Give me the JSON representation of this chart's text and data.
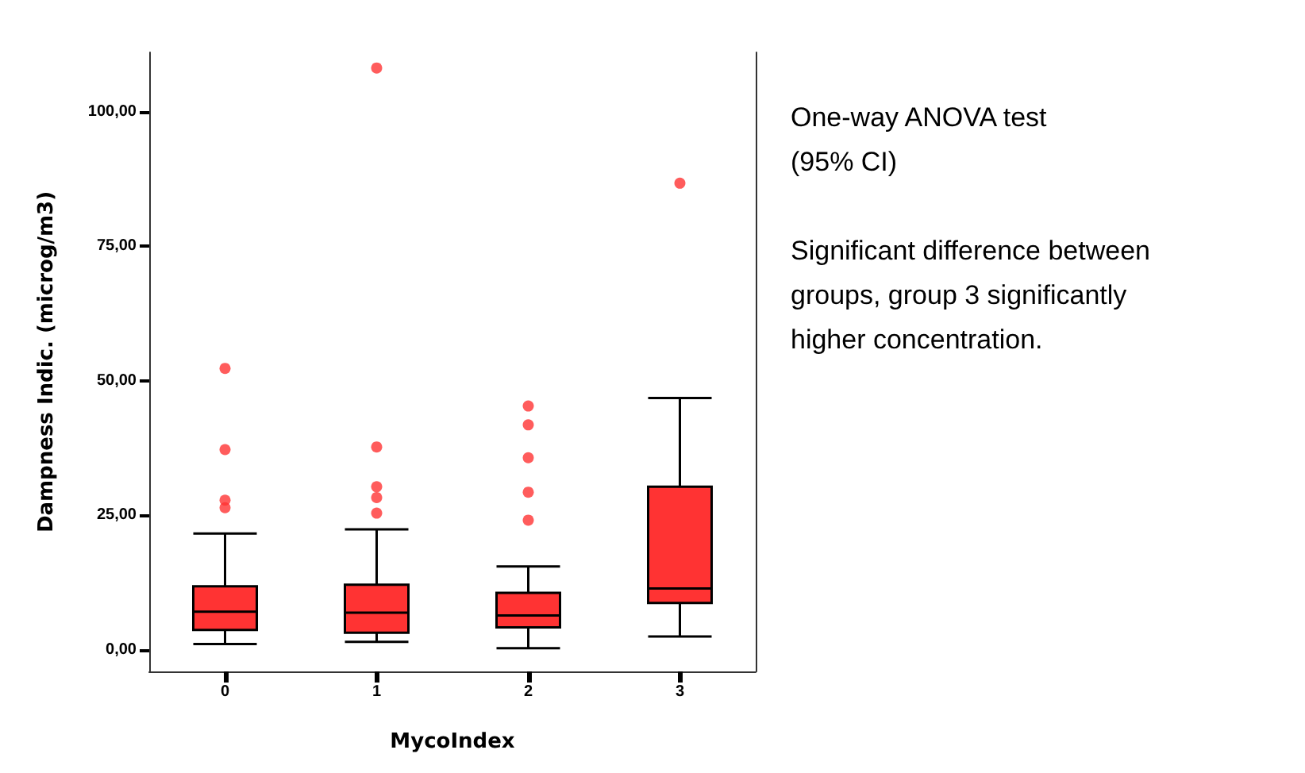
{
  "chart_data": {
    "type": "box",
    "xlabel": "MycoIndex",
    "ylabel": "Dampness Indic. (microg/m3)",
    "categories": [
      "0",
      "1",
      "2",
      "3"
    ],
    "series": [
      {
        "color": "#ff3333",
        "boxes": [
          {
            "low": 1.1,
            "q1": 3.7,
            "median": 7.1,
            "q3": 11.8,
            "high": 21.6,
            "outliers": [
              52.3,
              37.2,
              27.8,
              26.4
            ]
          },
          {
            "low": 1.5,
            "q1": 3.2,
            "median": 6.9,
            "q3": 12.1,
            "high": 22.4,
            "outliers": [
              108.1,
              37.7,
              30.3,
              28.3,
              25.4
            ]
          },
          {
            "low": 0.3,
            "q1": 4.2,
            "median": 6.4,
            "q3": 10.6,
            "high": 15.5,
            "outliers": [
              45.3,
              41.8,
              35.7,
              29.3,
              24.1
            ]
          },
          {
            "low": 2.5,
            "q1": 8.7,
            "median": 11.4,
            "q3": 30.3,
            "high": 46.8,
            "outliers": [
              86.7
            ]
          }
        ]
      }
    ],
    "ylim": [
      -4,
      111
    ],
    "yticks": [
      {
        "value": 0,
        "label": "0,00"
      },
      {
        "value": 25,
        "label": "25,00"
      },
      {
        "value": 50,
        "label": "50,00"
      },
      {
        "value": 75,
        "label": "75,00"
      },
      {
        "value": 100,
        "label": "100,00"
      }
    ],
    "grid": false,
    "annotations": [
      "One-way ANOVA test\n(95% CI)",
      "Significant difference between\ngroups, group 3 significantly\nhigher concentration."
    ]
  }
}
